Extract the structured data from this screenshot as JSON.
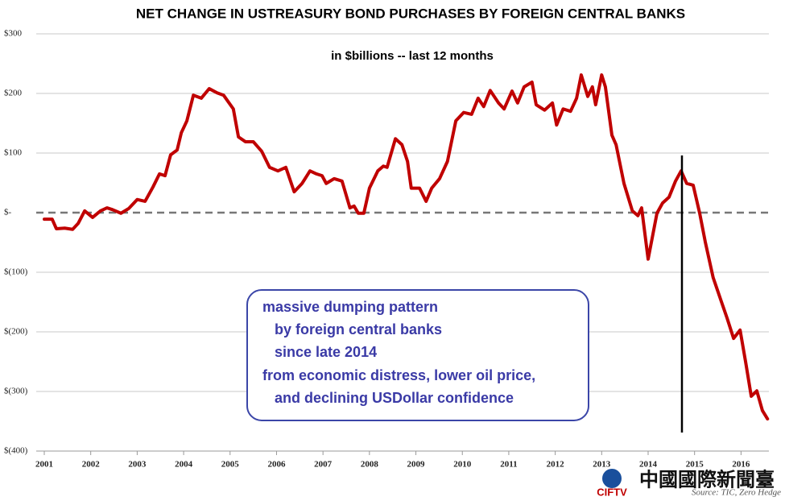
{
  "chart_data": {
    "type": "line",
    "title": "NET CHANGE IN USTREASURY BOND PURCHASES BY FOREIGN CENTRAL BANKS",
    "subtitle": "in $billions -- last 12 months",
    "annotation": [
      "massive dumping pattern",
      "by foreign central banks",
      "since late 2014",
      "from economic distress, lower oil price,",
      "and declining USDollar confidence"
    ],
    "source": "Source: TIC, Zero Hedge",
    "watermark": [
      "CIFTV",
      "中國國際新聞臺"
    ],
    "series": [
      {
        "name": "Net change",
        "color": "#c00000",
        "x": [
          2001.0,
          2001.17,
          2001.26,
          2001.44,
          2001.61,
          2001.73,
          2001.87,
          2002.04,
          2002.21,
          2002.35,
          2002.47,
          2002.65,
          2002.82,
          2003.0,
          2003.17,
          2003.34,
          2003.48,
          2003.6,
          2003.72,
          2003.86,
          2003.95,
          2004.07,
          2004.21,
          2004.38,
          2004.55,
          2004.72,
          2004.86,
          2005.07,
          2005.18,
          2005.33,
          2005.5,
          2005.68,
          2005.85,
          2006.03,
          2006.2,
          2006.38,
          2006.55,
          2006.72,
          2006.86,
          2006.98,
          2007.07,
          2007.24,
          2007.41,
          2007.58,
          2007.67,
          2007.76,
          2007.88,
          2008.0,
          2008.18,
          2008.3,
          2008.38,
          2008.56,
          2008.7,
          2008.82,
          2008.9,
          2009.08,
          2009.22,
          2009.34,
          2009.51,
          2009.68,
          2009.86,
          2010.03,
          2010.2,
          2010.34,
          2010.46,
          2010.6,
          2010.78,
          2010.9,
          2011.07,
          2011.19,
          2011.33,
          2011.5,
          2011.59,
          2011.77,
          2011.94,
          2012.03,
          2012.17,
          2012.33,
          2012.46,
          2012.56,
          2012.7,
          2012.8,
          2012.87,
          2013.0,
          2013.08,
          2013.22,
          2013.31,
          2013.48,
          2013.66,
          2013.78,
          2013.86,
          2014.0,
          2014.19,
          2014.31,
          2014.45,
          2014.59,
          2014.71,
          2014.83,
          2014.97,
          2015.11,
          2015.23,
          2015.4,
          2015.58,
          2015.7,
          2015.84,
          2015.98,
          2016.1,
          2016.22,
          2016.34,
          2016.46,
          2016.57
        ],
        "values": [
          -11,
          -11,
          -27,
          -26,
          -28,
          -18,
          3,
          -8,
          3,
          8,
          5,
          -1,
          7,
          22,
          19,
          43,
          65,
          62,
          97,
          105,
          134,
          154,
          197,
          192,
          208,
          201,
          197,
          174,
          127,
          119,
          119,
          103,
          76,
          70,
          76,
          35,
          49,
          70,
          65,
          62,
          49,
          57,
          53,
          8,
          11,
          -1,
          -1,
          41,
          70,
          78,
          76,
          124,
          114,
          86,
          41,
          41,
          19,
          41,
          57,
          86,
          154,
          168,
          165,
          192,
          178,
          205,
          184,
          174,
          204,
          184,
          211,
          219,
          181,
          172,
          184,
          147,
          174,
          170,
          192,
          231,
          195,
          211,
          181,
          231,
          211,
          130,
          114,
          49,
          3,
          -5,
          8,
          -78,
          -1,
          16,
          26,
          53,
          70,
          49,
          46,
          -1,
          -49,
          -109,
          -150,
          -177,
          -211,
          -197,
          -251,
          -308,
          -299,
          -332,
          -346
        ]
      }
    ],
    "xlim": [
      2001,
      2016.6
    ],
    "xticks": [
      2001,
      2002,
      2003,
      2004,
      2005,
      2006,
      2007,
      2008,
      2009,
      2010,
      2011,
      2012,
      2013,
      2014,
      2015,
      2016
    ],
    "ylim": [
      -400,
      300
    ],
    "yticks": [
      {
        "value": -400,
        "label": "$(400)"
      },
      {
        "value": -300,
        "label": "$(300)"
      },
      {
        "value": -200,
        "label": "$(200)"
      },
      {
        "value": -100,
        "label": "$(100)"
      },
      {
        "value": 0,
        "label": "$-"
      },
      {
        "value": 100,
        "label": "$100"
      },
      {
        "value": 200,
        "label": "$200"
      },
      {
        "value": 300,
        "label": "$300"
      }
    ],
    "grid": true
  }
}
